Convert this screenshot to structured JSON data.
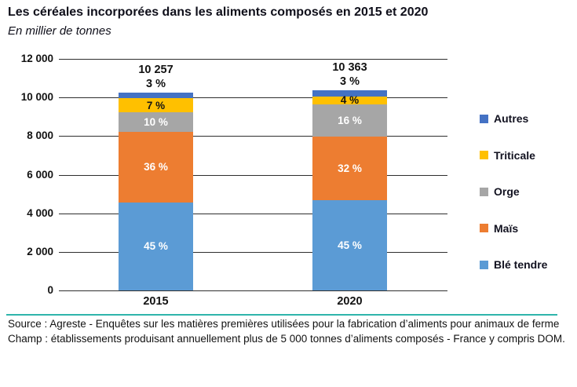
{
  "title": "Les céréales incorporées dans les aliments composés en 2015 et 2020",
  "subtitle": "En millier de tonnes",
  "chart_data": {
    "type": "bar",
    "stacked": true,
    "title": "Les céréales incorporées dans les aliments composés en 2015 et 2020",
    "unit_label": "En millier de tonnes",
    "categories": [
      "2015",
      "2020"
    ],
    "totals": [
      10257,
      10363
    ],
    "total_labels": [
      "10 257",
      "10 363"
    ],
    "series": [
      {
        "name": "Blé tendre",
        "color": "#5B9BD5",
        "pct": [
          45,
          45
        ],
        "labels": [
          "45 %",
          "45 %"
        ],
        "label_color": "#ffffff",
        "label_outside": false
      },
      {
        "name": "Maïs",
        "color": "#ED7D31",
        "pct": [
          36,
          32
        ],
        "labels": [
          "36 %",
          "32 %"
        ],
        "label_color": "#ffffff",
        "label_outside": false
      },
      {
        "name": "Orge",
        "color": "#A6A6A6",
        "pct": [
          10,
          16
        ],
        "labels": [
          "10 %",
          "16 %"
        ],
        "label_color": "#ffffff",
        "label_outside": false
      },
      {
        "name": "Triticale",
        "color": "#FFC000",
        "pct": [
          7,
          4
        ],
        "labels": [
          "7 %",
          "4 %"
        ],
        "label_color": "#151515",
        "label_outside": false
      },
      {
        "name": "Autres",
        "color": "#4472C4",
        "pct": [
          3,
          3
        ],
        "labels": [
          "3 %",
          "3 %"
        ],
        "label_color": "#151515",
        "label_outside": true
      }
    ],
    "ylim": [
      0,
      12000
    ],
    "yticks": [
      0,
      2000,
      4000,
      6000,
      8000,
      10000,
      12000
    ],
    "ytick_labels": [
      "0",
      "2 000",
      "4 000",
      "6 000",
      "8 000",
      "10 000",
      "12 000"
    ],
    "grid": true,
    "legend_position": "right",
    "legend": [
      "Autres",
      "Triticale",
      "Orge",
      "Maïs",
      "Blé tendre"
    ]
  },
  "footer": {
    "source": "Source : Agreste - Enquêtes sur les matières premières utilisées pour la fabrication d’aliments pour animaux de ferme",
    "champ": "Champ : établissements produisant annuellement plus de 5 000 tonnes d’aliments composés - France y compris DOM."
  },
  "colors": {
    "separator": "#2FB5AB",
    "gridline": "#2e2e2e",
    "text": "#121212"
  }
}
